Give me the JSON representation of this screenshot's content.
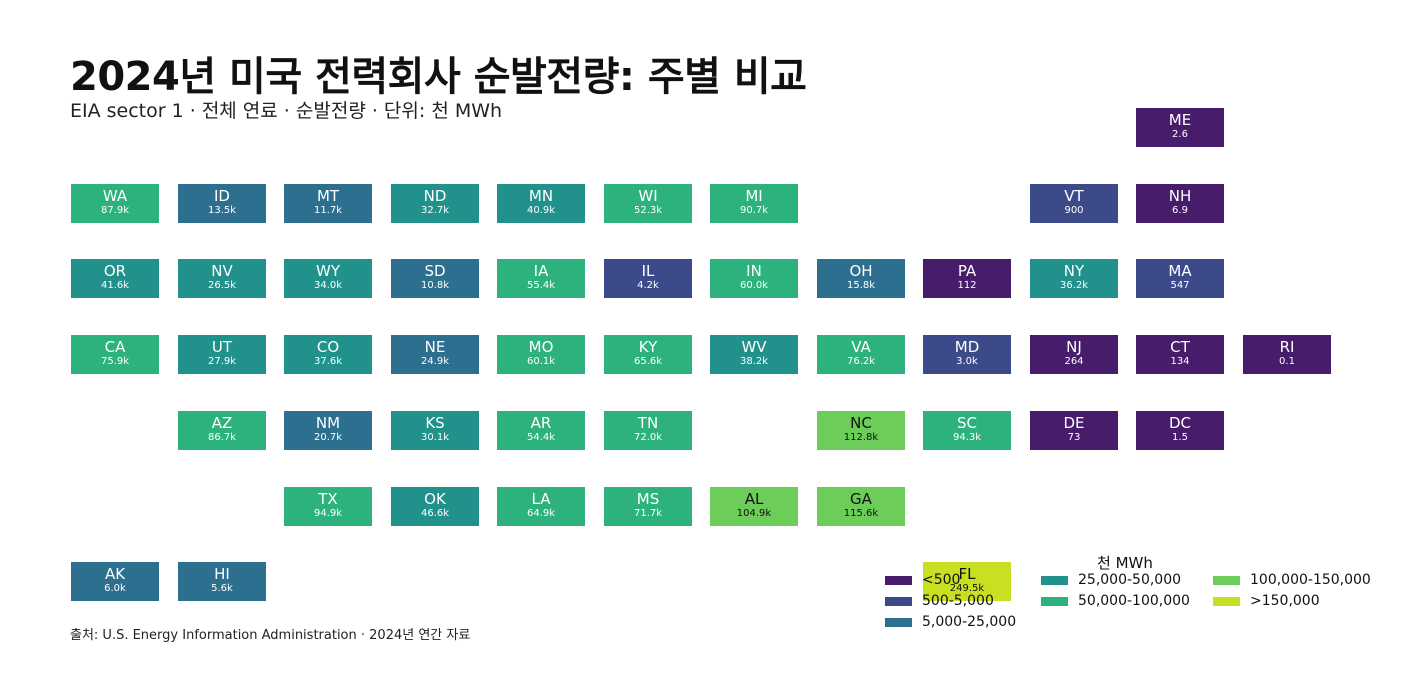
{
  "title": "2024년 미국 전력회사 순발전량: 주별 비교",
  "subtitle": "EIA sector 1 · 전체 연료 · 순발전량 · 단위: 천 MWh",
  "source": "출처: U.S. Energy Information Administration · 2024년 연간 자료",
  "colors": {
    "c0": "#471c6b",
    "c1": "#3d4a8a",
    "c2": "#2c6f8e",
    "c3": "#21918c",
    "c4": "#2db27d",
    "c5": "#6ccd59",
    "c6": "#c8e021"
  },
  "legend": {
    "title": "천 MWh",
    "items": [
      {
        "label": "<500",
        "color": "#471c6b"
      },
      {
        "label": "500-5,000",
        "color": "#3d4a8a"
      },
      {
        "label": "5,000-25,000",
        "color": "#2c6f8e"
      },
      {
        "label": "25,000-50,000",
        "color": "#21918c"
      },
      {
        "label": "50,000-100,000",
        "color": "#2db27d"
      },
      {
        "label": "100,000-150,000",
        "color": "#6ccd59"
      },
      {
        "label": ">150,000",
        "color": "#c8e021"
      }
    ]
  },
  "chart_data": {
    "type": "heatmap",
    "title": "2024년 미국 전력회사 순발전량: 주별 비교",
    "unit": "천 MWh",
    "states": [
      {
        "abbr": "ME",
        "label": "2.6",
        "value": 2.6,
        "row": 0,
        "col": 10,
        "bin": 0
      },
      {
        "abbr": "WA",
        "label": "87.9k",
        "value": 87900,
        "row": 1,
        "col": 0,
        "bin": 4
      },
      {
        "abbr": "ID",
        "label": "13.5k",
        "value": 13500,
        "row": 1,
        "col": 1,
        "bin": 2
      },
      {
        "abbr": "MT",
        "label": "11.7k",
        "value": 11700,
        "row": 1,
        "col": 2,
        "bin": 2
      },
      {
        "abbr": "ND",
        "label": "32.7k",
        "value": 32700,
        "row": 1,
        "col": 3,
        "bin": 3
      },
      {
        "abbr": "MN",
        "label": "40.9k",
        "value": 40900,
        "row": 1,
        "col": 4,
        "bin": 3
      },
      {
        "abbr": "WI",
        "label": "52.3k",
        "value": 52300,
        "row": 1,
        "col": 5,
        "bin": 4
      },
      {
        "abbr": "MI",
        "label": "90.7k",
        "value": 90700,
        "row": 1,
        "col": 6,
        "bin": 4
      },
      {
        "abbr": "VT",
        "label": "900",
        "value": 900,
        "row": 1,
        "col": 9,
        "bin": 1
      },
      {
        "abbr": "NH",
        "label": "6.9",
        "value": 6.9,
        "row": 1,
        "col": 10,
        "bin": 0
      },
      {
        "abbr": "OR",
        "label": "41.6k",
        "value": 41600,
        "row": 2,
        "col": 0,
        "bin": 3
      },
      {
        "abbr": "NV",
        "label": "26.5k",
        "value": 26500,
        "row": 2,
        "col": 1,
        "bin": 3
      },
      {
        "abbr": "WY",
        "label": "34.0k",
        "value": 34000,
        "row": 2,
        "col": 2,
        "bin": 3
      },
      {
        "abbr": "SD",
        "label": "10.8k",
        "value": 10800,
        "row": 2,
        "col": 3,
        "bin": 2
      },
      {
        "abbr": "IA",
        "label": "55.4k",
        "value": 55400,
        "row": 2,
        "col": 4,
        "bin": 4
      },
      {
        "abbr": "IL",
        "label": "4.2k",
        "value": 4200,
        "row": 2,
        "col": 5,
        "bin": 1
      },
      {
        "abbr": "IN",
        "label": "60.0k",
        "value": 60000,
        "row": 2,
        "col": 6,
        "bin": 4
      },
      {
        "abbr": "OH",
        "label": "15.8k",
        "value": 15800,
        "row": 2,
        "col": 7,
        "bin": 2
      },
      {
        "abbr": "PA",
        "label": "112",
        "value": 112,
        "row": 2,
        "col": 8,
        "bin": 0
      },
      {
        "abbr": "NY",
        "label": "36.2k",
        "value": 36200,
        "row": 2,
        "col": 9,
        "bin": 3
      },
      {
        "abbr": "MA",
        "label": "547",
        "value": 547,
        "row": 2,
        "col": 10,
        "bin": 1
      },
      {
        "abbr": "CA",
        "label": "75.9k",
        "value": 75900,
        "row": 3,
        "col": 0,
        "bin": 4
      },
      {
        "abbr": "UT",
        "label": "27.9k",
        "value": 27900,
        "row": 3,
        "col": 1,
        "bin": 3
      },
      {
        "abbr": "CO",
        "label": "37.6k",
        "value": 37600,
        "row": 3,
        "col": 2,
        "bin": 3
      },
      {
        "abbr": "NE",
        "label": "24.9k",
        "value": 24900,
        "row": 3,
        "col": 3,
        "bin": 2
      },
      {
        "abbr": "MO",
        "label": "60.1k",
        "value": 60100,
        "row": 3,
        "col": 4,
        "bin": 4
      },
      {
        "abbr": "KY",
        "label": "65.6k",
        "value": 65600,
        "row": 3,
        "col": 5,
        "bin": 4
      },
      {
        "abbr": "WV",
        "label": "38.2k",
        "value": 38200,
        "row": 3,
        "col": 6,
        "bin": 3
      },
      {
        "abbr": "VA",
        "label": "76.2k",
        "value": 76200,
        "row": 3,
        "col": 7,
        "bin": 4
      },
      {
        "abbr": "MD",
        "label": "3.0k",
        "value": 3000,
        "row": 3,
        "col": 8,
        "bin": 1
      },
      {
        "abbr": "NJ",
        "label": "264",
        "value": 264,
        "row": 3,
        "col": 9,
        "bin": 0
      },
      {
        "abbr": "CT",
        "label": "134",
        "value": 134,
        "row": 3,
        "col": 10,
        "bin": 0
      },
      {
        "abbr": "RI",
        "label": "0.1",
        "value": 0.1,
        "row": 3,
        "col": 11,
        "bin": 0
      },
      {
        "abbr": "AZ",
        "label": "86.7k",
        "value": 86700,
        "row": 4,
        "col": 1,
        "bin": 4
      },
      {
        "abbr": "NM",
        "label": "20.7k",
        "value": 20700,
        "row": 4,
        "col": 2,
        "bin": 2
      },
      {
        "abbr": "KS",
        "label": "30.1k",
        "value": 30100,
        "row": 4,
        "col": 3,
        "bin": 3
      },
      {
        "abbr": "AR",
        "label": "54.4k",
        "value": 54400,
        "row": 4,
        "col": 4,
        "bin": 4
      },
      {
        "abbr": "TN",
        "label": "72.0k",
        "value": 72000,
        "row": 4,
        "col": 5,
        "bin": 4
      },
      {
        "abbr": "NC",
        "label": "112.8k",
        "value": 112800,
        "row": 4,
        "col": 7,
        "bin": 5
      },
      {
        "abbr": "SC",
        "label": "94.3k",
        "value": 94300,
        "row": 4,
        "col": 8,
        "bin": 4
      },
      {
        "abbr": "DE",
        "label": "73",
        "value": 73,
        "row": 4,
        "col": 9,
        "bin": 0
      },
      {
        "abbr": "DC",
        "label": "1.5",
        "value": 1.5,
        "row": 4,
        "col": 10,
        "bin": 0
      },
      {
        "abbr": "TX",
        "label": "94.9k",
        "value": 94900,
        "row": 5,
        "col": 2,
        "bin": 4
      },
      {
        "abbr": "OK",
        "label": "46.6k",
        "value": 46600,
        "row": 5,
        "col": 3,
        "bin": 3
      },
      {
        "abbr": "LA",
        "label": "64.9k",
        "value": 64900,
        "row": 5,
        "col": 4,
        "bin": 4
      },
      {
        "abbr": "MS",
        "label": "71.7k",
        "value": 71700,
        "row": 5,
        "col": 5,
        "bin": 4
      },
      {
        "abbr": "AL",
        "label": "104.9k",
        "value": 104900,
        "row": 5,
        "col": 6,
        "bin": 5
      },
      {
        "abbr": "GA",
        "label": "115.6k",
        "value": 115600,
        "row": 5,
        "col": 7,
        "bin": 5
      },
      {
        "abbr": "AK",
        "label": "6.0k",
        "value": 6000,
        "row": 6,
        "col": 0,
        "bin": 2
      },
      {
        "abbr": "HI",
        "label": "5.6k",
        "value": 5600,
        "row": 6,
        "col": 1,
        "bin": 2
      },
      {
        "abbr": "FL",
        "label": "249.5k",
        "value": 249500,
        "row": 6,
        "col": 8,
        "bin": 6
      }
    ]
  }
}
